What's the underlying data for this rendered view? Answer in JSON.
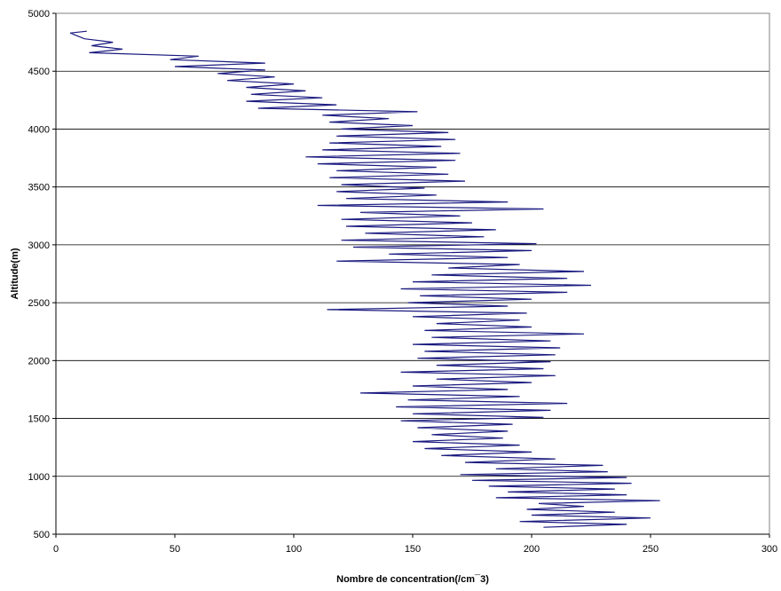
{
  "chart_data": {
    "type": "line",
    "title": "",
    "xlabel": "Nombre de concentration(/cm¯3)",
    "ylabel": "Altitude(m)",
    "xlim": [
      0,
      300
    ],
    "ylim": [
      500,
      5000
    ],
    "x_ticks": [
      "0",
      "50",
      "100",
      "150",
      "200",
      "250",
      "300"
    ],
    "y_ticks": [
      "500",
      "1000",
      "1500",
      "2000",
      "2500",
      "3000",
      "3500",
      "4000",
      "4500",
      "5000"
    ],
    "grid": "horizontal major gridlines",
    "legend": "none",
    "series_color": "#1a1a80",
    "series": [
      {
        "points": [
          {
            "x": 205,
            "y": 560
          },
          {
            "x": 240,
            "y": 585
          },
          {
            "x": 195,
            "y": 610
          },
          {
            "x": 250,
            "y": 640
          },
          {
            "x": 200,
            "y": 665
          },
          {
            "x": 235,
            "y": 690
          },
          {
            "x": 198,
            "y": 715
          },
          {
            "x": 222,
            "y": 740
          },
          {
            "x": 203,
            "y": 765
          },
          {
            "x": 254,
            "y": 790
          },
          {
            "x": 185,
            "y": 815
          },
          {
            "x": 240,
            "y": 840
          },
          {
            "x": 190,
            "y": 865
          },
          {
            "x": 235,
            "y": 890
          },
          {
            "x": 182,
            "y": 915
          },
          {
            "x": 242,
            "y": 940
          },
          {
            "x": 175,
            "y": 965
          },
          {
            "x": 240,
            "y": 990
          },
          {
            "x": 170,
            "y": 1015
          },
          {
            "x": 232,
            "y": 1040
          },
          {
            "x": 185,
            "y": 1065
          },
          {
            "x": 230,
            "y": 1095
          },
          {
            "x": 172,
            "y": 1120
          },
          {
            "x": 210,
            "y": 1150
          },
          {
            "x": 162,
            "y": 1180
          },
          {
            "x": 200,
            "y": 1210
          },
          {
            "x": 155,
            "y": 1240
          },
          {
            "x": 195,
            "y": 1270
          },
          {
            "x": 150,
            "y": 1300
          },
          {
            "x": 188,
            "y": 1330
          },
          {
            "x": 158,
            "y": 1360
          },
          {
            "x": 190,
            "y": 1390
          },
          {
            "x": 152,
            "y": 1420
          },
          {
            "x": 192,
            "y": 1450
          },
          {
            "x": 145,
            "y": 1480
          },
          {
            "x": 205,
            "y": 1510
          },
          {
            "x": 150,
            "y": 1540
          },
          {
            "x": 208,
            "y": 1570
          },
          {
            "x": 143,
            "y": 1600
          },
          {
            "x": 215,
            "y": 1630
          },
          {
            "x": 148,
            "y": 1660
          },
          {
            "x": 195,
            "y": 1690
          },
          {
            "x": 128,
            "y": 1720
          },
          {
            "x": 190,
            "y": 1750
          },
          {
            "x": 150,
            "y": 1780
          },
          {
            "x": 200,
            "y": 1810
          },
          {
            "x": 160,
            "y": 1840
          },
          {
            "x": 210,
            "y": 1870
          },
          {
            "x": 145,
            "y": 1900
          },
          {
            "x": 205,
            "y": 1930
          },
          {
            "x": 160,
            "y": 1960
          },
          {
            "x": 208,
            "y": 1990
          },
          {
            "x": 152,
            "y": 2020
          },
          {
            "x": 210,
            "y": 2050
          },
          {
            "x": 155,
            "y": 2080
          },
          {
            "x": 212,
            "y": 2110
          },
          {
            "x": 150,
            "y": 2140
          },
          {
            "x": 208,
            "y": 2170
          },
          {
            "x": 158,
            "y": 2200
          },
          {
            "x": 222,
            "y": 2230
          },
          {
            "x": 155,
            "y": 2260
          },
          {
            "x": 200,
            "y": 2290
          },
          {
            "x": 160,
            "y": 2320
          },
          {
            "x": 195,
            "y": 2350
          },
          {
            "x": 150,
            "y": 2380
          },
          {
            "x": 198,
            "y": 2410
          },
          {
            "x": 114,
            "y": 2440
          },
          {
            "x": 190,
            "y": 2470
          },
          {
            "x": 148,
            "y": 2500
          },
          {
            "x": 200,
            "y": 2530
          },
          {
            "x": 153,
            "y": 2560
          },
          {
            "x": 215,
            "y": 2590
          },
          {
            "x": 145,
            "y": 2620
          },
          {
            "x": 225,
            "y": 2650
          },
          {
            "x": 150,
            "y": 2680
          },
          {
            "x": 215,
            "y": 2710
          },
          {
            "x": 158,
            "y": 2740
          },
          {
            "x": 222,
            "y": 2770
          },
          {
            "x": 165,
            "y": 2800
          },
          {
            "x": 195,
            "y": 2830
          },
          {
            "x": 118,
            "y": 2860
          },
          {
            "x": 190,
            "y": 2890
          },
          {
            "x": 140,
            "y": 2920
          },
          {
            "x": 200,
            "y": 2950
          },
          {
            "x": 125,
            "y": 2980
          },
          {
            "x": 202,
            "y": 3010
          },
          {
            "x": 120,
            "y": 3040
          },
          {
            "x": 180,
            "y": 3070
          },
          {
            "x": 130,
            "y": 3100
          },
          {
            "x": 185,
            "y": 3130
          },
          {
            "x": 122,
            "y": 3160
          },
          {
            "x": 175,
            "y": 3190
          },
          {
            "x": 120,
            "y": 3220
          },
          {
            "x": 170,
            "y": 3250
          },
          {
            "x": 128,
            "y": 3280
          },
          {
            "x": 205,
            "y": 3310
          },
          {
            "x": 110,
            "y": 3340
          },
          {
            "x": 190,
            "y": 3370
          },
          {
            "x": 122,
            "y": 3400
          },
          {
            "x": 160,
            "y": 3430
          },
          {
            "x": 118,
            "y": 3460
          },
          {
            "x": 155,
            "y": 3490
          },
          {
            "x": 120,
            "y": 3520
          },
          {
            "x": 172,
            "y": 3550
          },
          {
            "x": 115,
            "y": 3580
          },
          {
            "x": 165,
            "y": 3610
          },
          {
            "x": 118,
            "y": 3640
          },
          {
            "x": 160,
            "y": 3670
          },
          {
            "x": 110,
            "y": 3700
          },
          {
            "x": 168,
            "y": 3730
          },
          {
            "x": 105,
            "y": 3760
          },
          {
            "x": 170,
            "y": 3790
          },
          {
            "x": 112,
            "y": 3820
          },
          {
            "x": 162,
            "y": 3850
          },
          {
            "x": 115,
            "y": 3880
          },
          {
            "x": 168,
            "y": 3910
          },
          {
            "x": 118,
            "y": 3940
          },
          {
            "x": 165,
            "y": 3970
          },
          {
            "x": 120,
            "y": 4000
          },
          {
            "x": 150,
            "y": 4030
          },
          {
            "x": 115,
            "y": 4060
          },
          {
            "x": 140,
            "y": 4090
          },
          {
            "x": 112,
            "y": 4120
          },
          {
            "x": 152,
            "y": 4150
          },
          {
            "x": 85,
            "y": 4180
          },
          {
            "x": 118,
            "y": 4210
          },
          {
            "x": 80,
            "y": 4240
          },
          {
            "x": 112,
            "y": 4270
          },
          {
            "x": 82,
            "y": 4300
          },
          {
            "x": 105,
            "y": 4330
          },
          {
            "x": 80,
            "y": 4360
          },
          {
            "x": 100,
            "y": 4390
          },
          {
            "x": 72,
            "y": 4420
          },
          {
            "x": 92,
            "y": 4450
          },
          {
            "x": 68,
            "y": 4480
          },
          {
            "x": 88,
            "y": 4510
          },
          {
            "x": 50,
            "y": 4540
          },
          {
            "x": 88,
            "y": 4570
          },
          {
            "x": 48,
            "y": 4600
          },
          {
            "x": 60,
            "y": 4630
          },
          {
            "x": 14,
            "y": 4660
          },
          {
            "x": 28,
            "y": 4690
          },
          {
            "x": 15,
            "y": 4720
          },
          {
            "x": 24,
            "y": 4750
          },
          {
            "x": 12,
            "y": 4780
          },
          {
            "x": 9,
            "y": 4805
          },
          {
            "x": 6,
            "y": 4830
          },
          {
            "x": 13,
            "y": 4845
          }
        ]
      }
    ]
  }
}
